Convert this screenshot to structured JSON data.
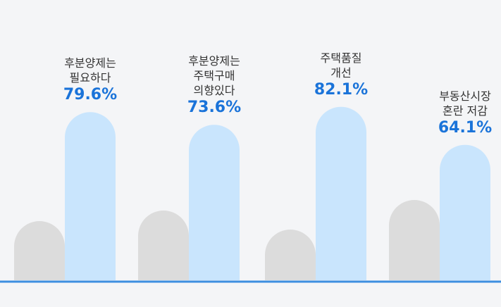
{
  "chart_data": {
    "type": "bar",
    "categories": [
      "후분양제는\n필요하다",
      "후분양제는\n주택구매\n의향있다",
      "주택품질\n개선",
      "부동산시장\n혼란 저감"
    ],
    "series": [
      {
        "color": "#dcdcdc",
        "values": [
          28,
          33,
          24,
          38
        ]
      },
      {
        "color": "#c9e5fd",
        "values": [
          79.6,
          73.6,
          82.1,
          64.1
        ],
        "value_labels": [
          "79.6%",
          "73.6%",
          "82.1%",
          "64.1%"
        ]
      }
    ],
    "value_label_color": "#1a73d9",
    "baseline_color": "#3d8fe0",
    "ylim": [
      0,
      100
    ]
  }
}
